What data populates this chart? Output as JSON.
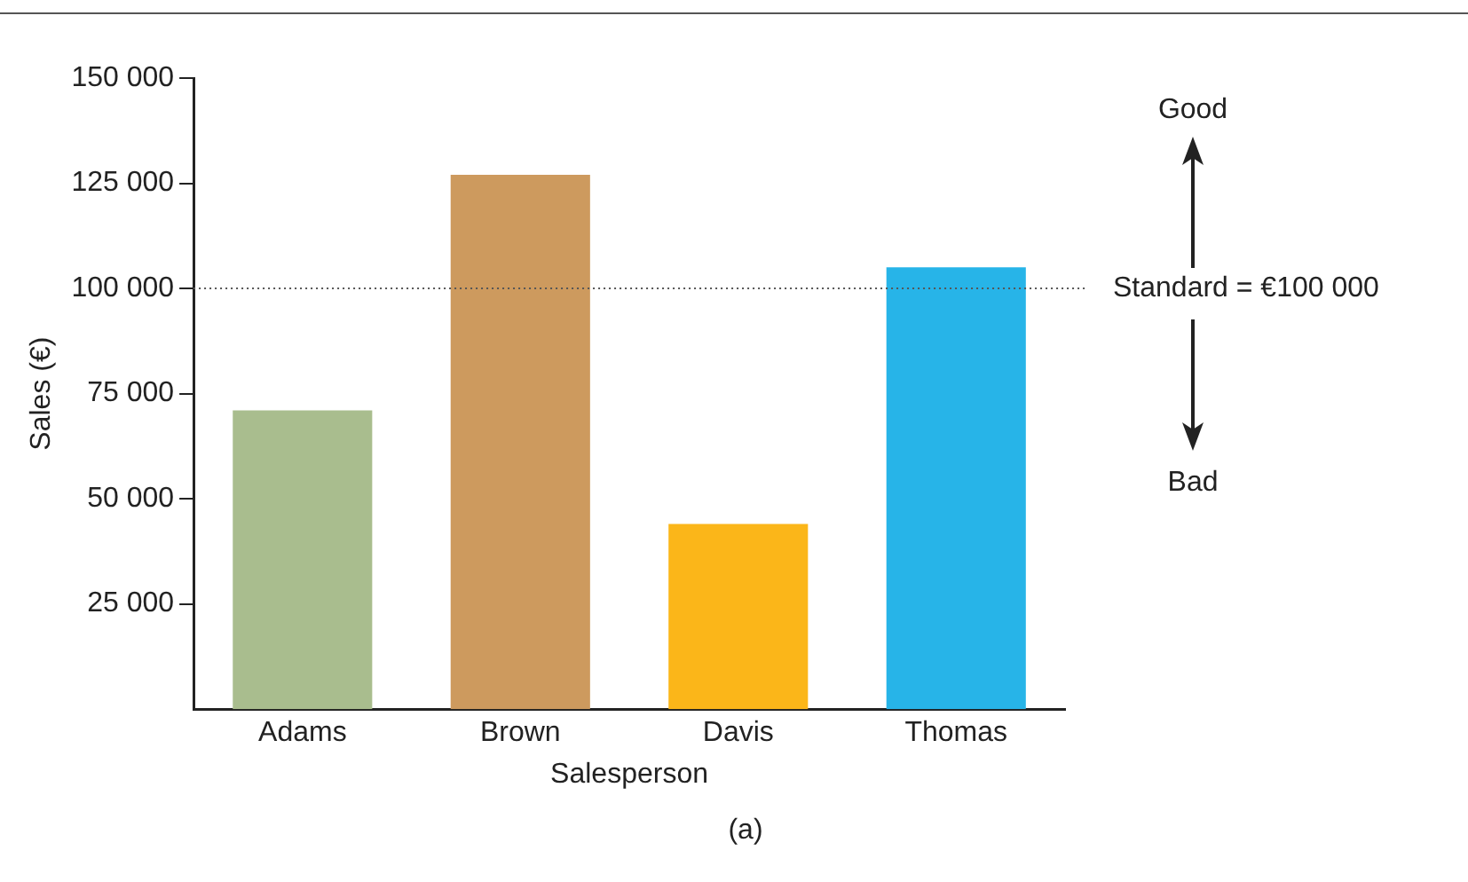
{
  "chart_data": {
    "type": "bar",
    "xlabel": "Salesperson",
    "ylabel": "Sales (€)",
    "categories": [
      "Adams",
      "Brown",
      "Davis",
      "Thomas"
    ],
    "values": [
      71000,
      127000,
      44000,
      105000
    ],
    "colors": [
      "#a9bd8e",
      "#cd9a5e",
      "#fbb619",
      "#27b4e8"
    ],
    "ylim": [
      0,
      150000
    ],
    "yticks": [
      {
        "value": 25000,
        "label": "25 000"
      },
      {
        "value": 50000,
        "label": "50 000"
      },
      {
        "value": 75000,
        "label": "75 000"
      },
      {
        "value": 100000,
        "label": "100 000"
      },
      {
        "value": 125000,
        "label": "125 000"
      },
      {
        "value": 150000,
        "label": "150 000"
      }
    ],
    "ref_lines": [
      {
        "axis": "y",
        "value": 100000,
        "label": "Standard = €100 000",
        "color": "#555555",
        "line_style": "dotted"
      }
    ],
    "annotations": [
      "Good",
      "Bad",
      "(a)"
    ],
    "grid": false,
    "legend": false
  }
}
